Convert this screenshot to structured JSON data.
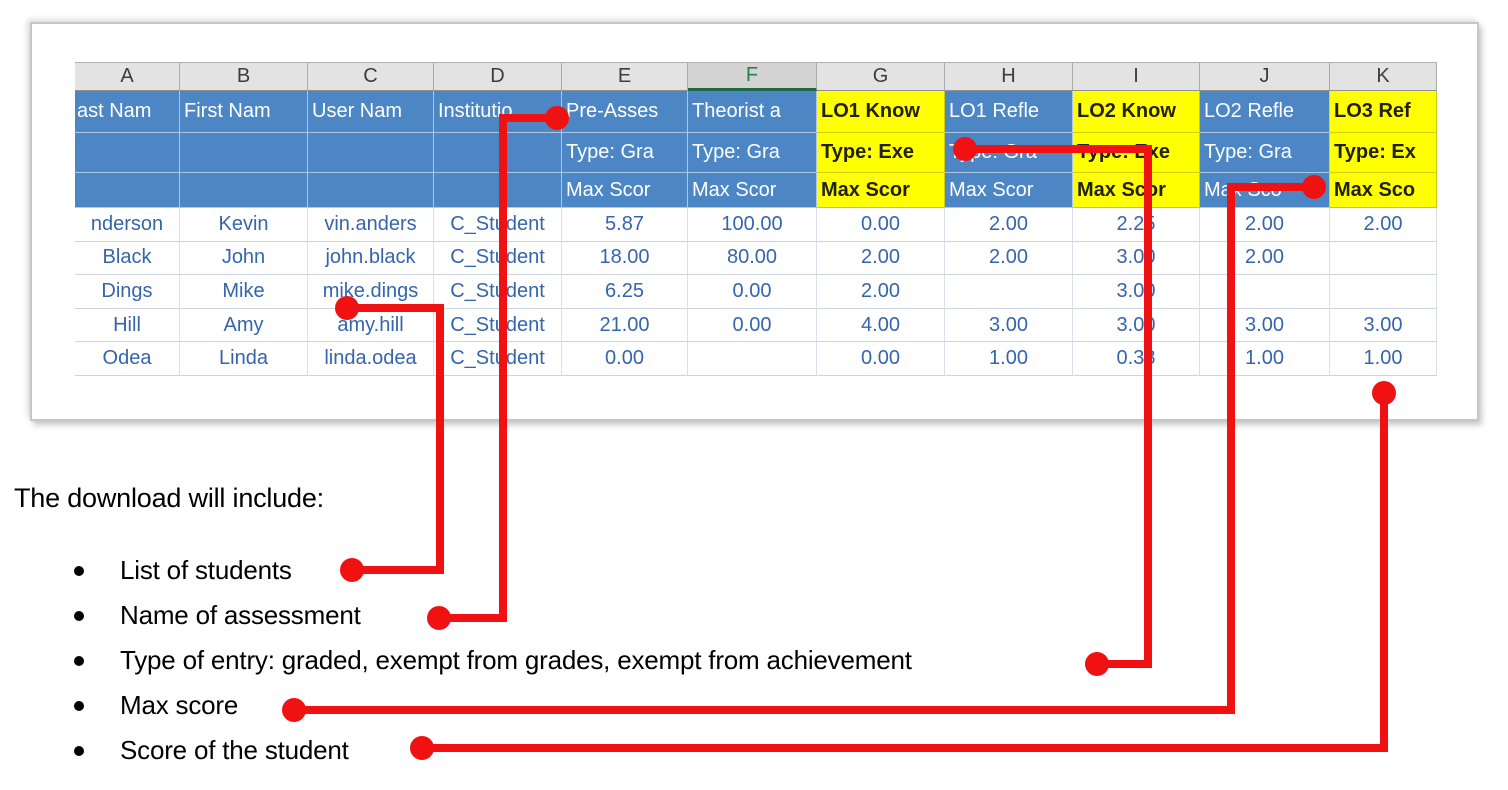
{
  "colors": {
    "annotation_red": "#f01212",
    "header_blue": "#4d86c4",
    "highlight_yellow": "#ffff00",
    "selected_column_green": "#1e6b43",
    "data_text_blue": "#3465ad"
  },
  "spreadsheet": {
    "column_letters": [
      "A",
      "B",
      "C",
      "D",
      "E",
      "F",
      "G",
      "H",
      "I",
      "J",
      "K"
    ],
    "selected_column": "F",
    "header_row1": [
      "ast Nam",
      "First Nam",
      "User Nam",
      "Institutio",
      "Pre-Asses",
      "Theorist a",
      "LO1 Know",
      "LO1 Refle",
      "LO2 Know",
      "LO2 Refle",
      "LO3 Ref"
    ],
    "header_row2": [
      "",
      "",
      "",
      "",
      "Type: Gra",
      "Type: Gra",
      "Type: Exe",
      "Type: Gra",
      "Type: Exe",
      "Type: Gra",
      "Type: Ex"
    ],
    "header_row3": [
      "",
      "",
      "",
      "",
      "Max Scor",
      "Max Scor",
      "Max Scor",
      "Max Scor",
      "Max Scor",
      "Max Sco",
      "Max Sco"
    ],
    "yellow_columns": [
      false,
      false,
      false,
      false,
      false,
      false,
      true,
      false,
      true,
      false,
      true
    ],
    "rows": [
      [
        "nderson",
        "Kevin",
        "vin.anders",
        "C_Student",
        "5.87",
        "100.00",
        "0.00",
        "2.00",
        "2.25",
        "2.00",
        "2.00"
      ],
      [
        "Black",
        "John",
        "john.black",
        "C_Student",
        "18.00",
        "80.00",
        "2.00",
        "2.00",
        "3.00",
        "2.00",
        ""
      ],
      [
        "Dings",
        "Mike",
        "mike.dings",
        "C_Student",
        "6.25",
        "0.00",
        "2.00",
        "",
        "3.00",
        "",
        ""
      ],
      [
        "Hill",
        "Amy",
        "amy.hill",
        "C_Student",
        "21.00",
        "0.00",
        "4.00",
        "3.00",
        "3.00",
        "3.00",
        "3.00"
      ],
      [
        "Odea",
        "Linda",
        "linda.odea",
        "C_Student",
        "0.00",
        "",
        "0.00",
        "1.00",
        "0.38",
        "1.00",
        "1.00"
      ]
    ]
  },
  "caption": {
    "title": "The download will include:",
    "bullets": [
      "List of students",
      "Name of assessment",
      "Type of entry: graded, exempt from grades, exempt from achievement",
      "Max score",
      "Score of the student"
    ]
  }
}
